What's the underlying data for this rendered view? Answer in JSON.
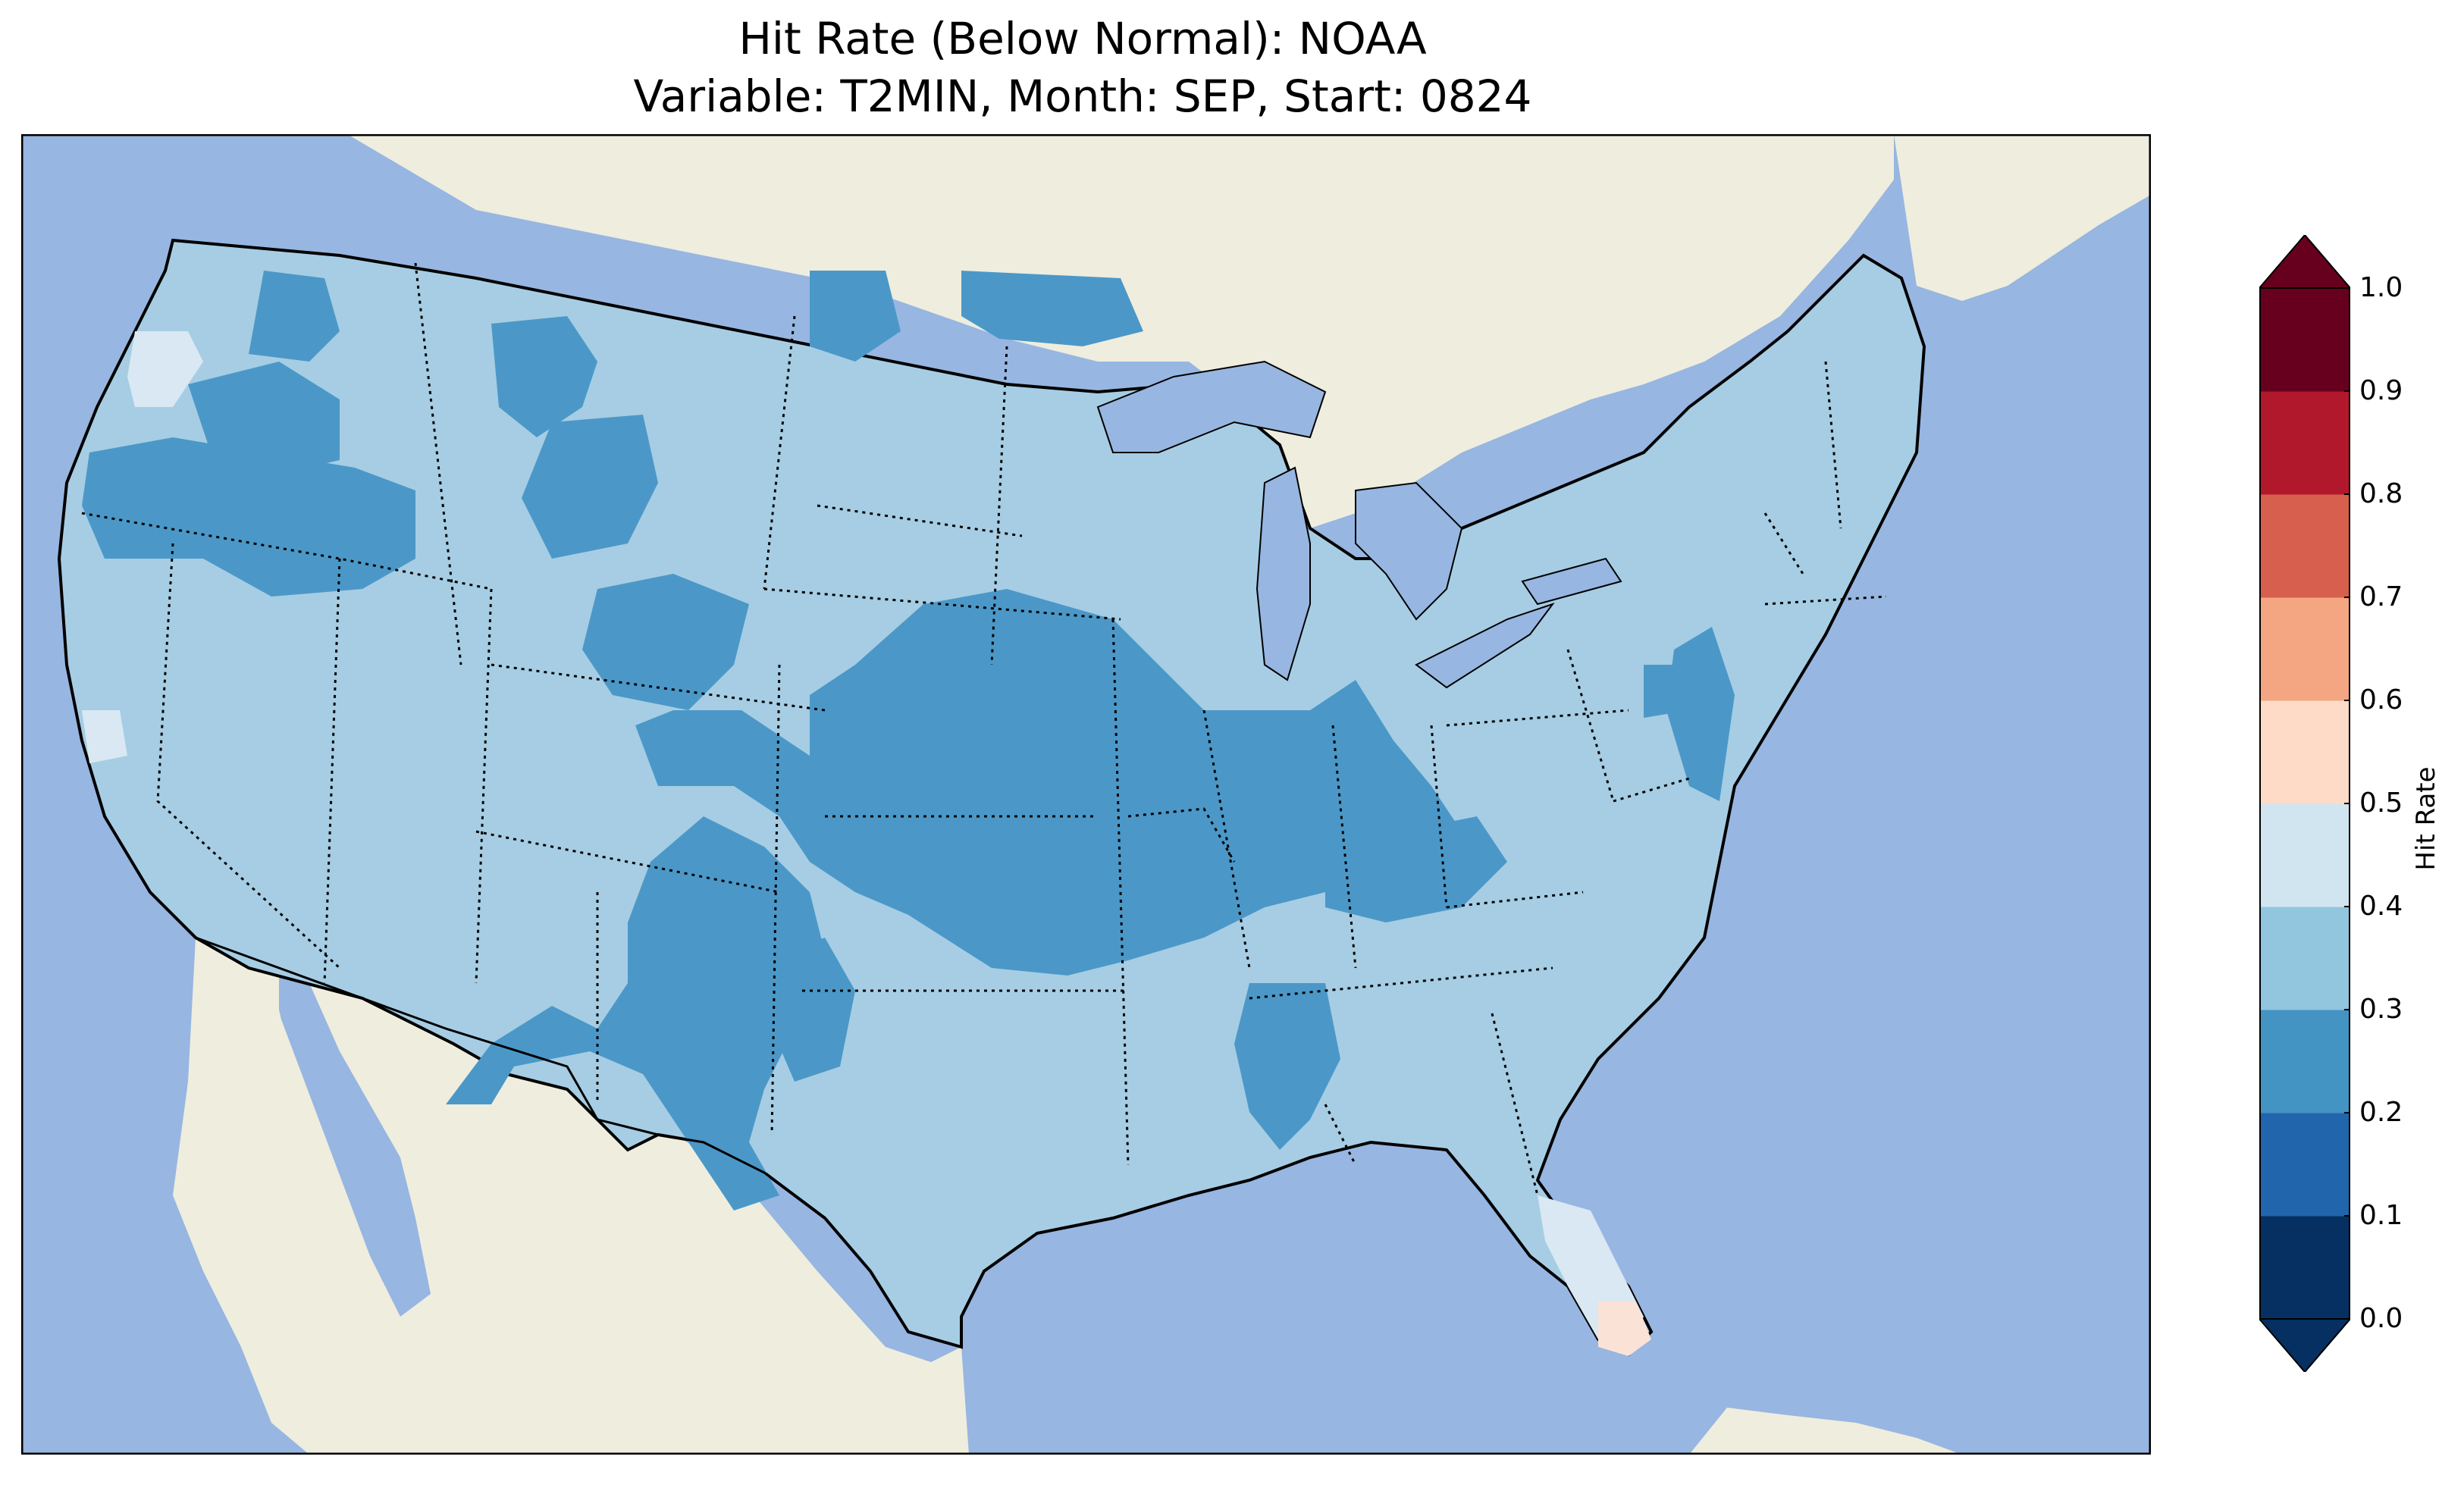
{
  "title_line1": "Hit Rate (Below Normal): NOAA",
  "title_line2": "Variable: T2MIN, Month: SEP, Start: 0824",
  "colorbar": {
    "label": "Hit Rate",
    "ticks": [
      "0.0",
      "0.1",
      "0.2",
      "0.3",
      "0.4",
      "0.5",
      "0.6",
      "0.7",
      "0.8",
      "0.9",
      "1.0"
    ],
    "bins": [
      {
        "range": [
          0.0,
          0.1
        ],
        "color": "#053061"
      },
      {
        "range": [
          0.1,
          0.2
        ],
        "color": "#2166ac"
      },
      {
        "range": [
          0.2,
          0.3
        ],
        "color": "#4393c3"
      },
      {
        "range": [
          0.3,
          0.4
        ],
        "color": "#92c5de"
      },
      {
        "range": [
          0.4,
          0.5
        ],
        "color": "#d1e5f0"
      },
      {
        "range": [
          0.5,
          0.6
        ],
        "color": "#fddbc7"
      },
      {
        "range": [
          0.6,
          0.7
        ],
        "color": "#f4a582"
      },
      {
        "range": [
          0.7,
          0.8
        ],
        "color": "#d6604d"
      },
      {
        "range": [
          0.8,
          0.9
        ],
        "color": "#b2182b"
      },
      {
        "range": [
          0.9,
          1.0
        ],
        "color": "#67001f"
      }
    ],
    "extend": "both"
  },
  "map": {
    "extent": "Contiguous United States",
    "ocean_color": "#97b6e1",
    "land_color": "#efedde",
    "dominant_value_range": [
      0.3,
      0.4
    ],
    "low_value_regions": [
      "Pacific Northwest interior",
      "Northern California",
      "Idaho and Montana",
      "Colorado",
      "Kansas",
      "Nebraska",
      "Missouri",
      "Iowa",
      "Illinois",
      "Kentucky",
      "New Mexico",
      "Oklahoma panhandle",
      "Mississippi",
      "New Jersey and Delaware"
    ],
    "high_value_regions": [
      "Coastal Washington",
      "Florida peninsula",
      "South Florida"
    ]
  }
}
